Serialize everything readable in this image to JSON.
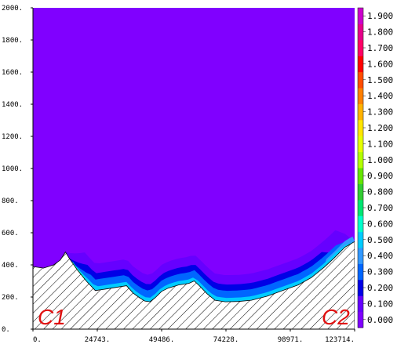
{
  "chart_data": {
    "type": "heatmap",
    "title": "",
    "xlabel": "",
    "ylabel": "",
    "xlim": [
      0,
      123714
    ],
    "ylim": [
      0,
      2000
    ],
    "x_ticks": [
      "0.",
      "24743.",
      "49486.",
      "74228.",
      "98971.",
      "123714."
    ],
    "y_ticks": [
      "0.",
      "200.",
      "400.",
      "600.",
      "800.",
      "1000.",
      "1200.",
      "1400.",
      "1600.",
      "1800.",
      "2000."
    ],
    "colorbar": {
      "levels": [
        "0.000",
        "0.100",
        "0.200",
        "0.300",
        "0.400",
        "0.500",
        "0.600",
        "0.700",
        "0.800",
        "0.900",
        "1.000",
        "1.100",
        "1.200",
        "1.300",
        "1.400",
        "1.500",
        "1.600",
        "1.700",
        "1.800",
        "1.900"
      ],
      "colors": [
        "#8000ff",
        "#6600ff",
        "#0000e6",
        "#0066ff",
        "#3399ff",
        "#00ccff",
        "#00ffcc",
        "#00e673",
        "#33cc33",
        "#66e600",
        "#b3ff00",
        "#e6ff00",
        "#ffe600",
        "#ffb300",
        "#ff8000",
        "#ff4d00",
        "#ff0000",
        "#ff0066",
        "#e6008a",
        "#cc00cc"
      ]
    },
    "background_value": "0.000",
    "terrain_profile": [
      [
        0,
        390
      ],
      [
        4000,
        380
      ],
      [
        8000,
        400
      ],
      [
        10500,
        430
      ],
      [
        12500,
        480
      ],
      [
        14000,
        440
      ],
      [
        17000,
        370
      ],
      [
        20500,
        300
      ],
      [
        24000,
        240
      ],
      [
        28000,
        250
      ],
      [
        32000,
        260
      ],
      [
        36000,
        270
      ],
      [
        38500,
        225
      ],
      [
        41000,
        195
      ],
      [
        43000,
        175
      ],
      [
        45000,
        170
      ],
      [
        47000,
        195
      ],
      [
        49500,
        235
      ],
      [
        52000,
        255
      ],
      [
        56000,
        275
      ],
      [
        60000,
        285
      ],
      [
        62000,
        300
      ],
      [
        64000,
        270
      ],
      [
        67000,
        220
      ],
      [
        70000,
        180
      ],
      [
        74000,
        170
      ],
      [
        79000,
        172
      ],
      [
        84000,
        180
      ],
      [
        90000,
        205
      ],
      [
        96000,
        240
      ],
      [
        102000,
        275
      ],
      [
        107000,
        320
      ],
      [
        112000,
        385
      ],
      [
        116000,
        445
      ],
      [
        120000,
        510
      ],
      [
        123714,
        545
      ]
    ],
    "contour_regions": [
      {
        "level": "0.100",
        "x_range": [
          12500,
          123714
        ]
      },
      {
        "level": "0.200",
        "x_range": [
          14000,
          118000
        ]
      },
      {
        "level": "0.300",
        "x_range": [
          15000,
          123714
        ]
      },
      {
        "level": "0.400",
        "x_range": [
          112000,
          123714
        ]
      },
      {
        "level": "0.500",
        "x_range": [
          14000,
          123714
        ]
      },
      {
        "level": "0.600",
        "x_range": [
          15000,
          20000
        ]
      }
    ],
    "annotations": [
      "C1",
      "C2"
    ]
  }
}
